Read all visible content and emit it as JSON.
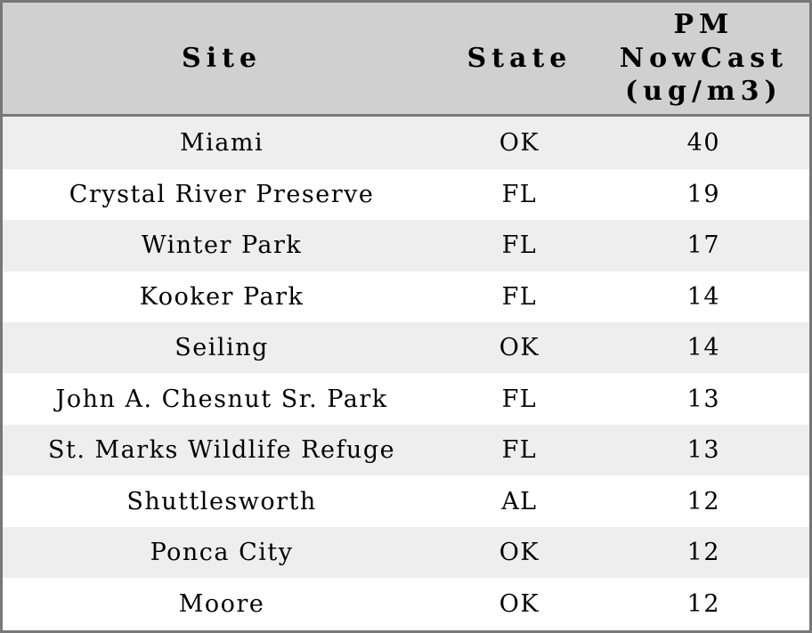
{
  "header": {
    "site_label": "Site",
    "state_label": "State",
    "pm_lines": [
      "PM",
      "NowCast",
      "(ug/m3)"
    ]
  },
  "rows": [
    {
      "site": "Miami",
      "state": "OK",
      "value": "40"
    },
    {
      "site": "Crystal River Preserve",
      "state": "FL",
      "value": "19"
    },
    {
      "site": "Winter Park",
      "state": "FL",
      "value": "17"
    },
    {
      "site": "Kooker Park",
      "state": "FL",
      "value": "14"
    },
    {
      "site": "Seiling",
      "state": "OK",
      "value": "14"
    },
    {
      "site": "John A. Chesnut Sr. Park",
      "state": "FL",
      "value": "13"
    },
    {
      "site": "St. Marks Wildlife Refuge",
      "state": "FL",
      "value": "13"
    },
    {
      "site": "Shuttlesworth",
      "state": "AL",
      "value": "12"
    },
    {
      "site": "Ponca City",
      "state": "OK",
      "value": "12"
    },
    {
      "site": "Moore",
      "state": "OK",
      "value": "12"
    }
  ],
  "colors": {
    "header_bg": "#d0d0d0",
    "border": "#787878",
    "row_stripe": "#eeeeee",
    "row_plain": "#ffffff",
    "text": "#000000"
  },
  "chart_data": {
    "type": "table",
    "title": "",
    "columns": [
      "Site",
      "State",
      "PM NowCast (ug/m3)"
    ],
    "rows": [
      [
        "Miami",
        "OK",
        40
      ],
      [
        "Crystal River Preserve",
        "FL",
        19
      ],
      [
        "Winter Park",
        "FL",
        17
      ],
      [
        "Kooker Park",
        "FL",
        14
      ],
      [
        "Seiling",
        "OK",
        14
      ],
      [
        "John A. Chesnut Sr. Park",
        "FL",
        13
      ],
      [
        "St. Marks Wildlife Refuge",
        "FL",
        13
      ],
      [
        "Shuttlesworth",
        "AL",
        12
      ],
      [
        "Ponca City",
        "OK",
        12
      ],
      [
        "Moore",
        "OK",
        12
      ]
    ]
  }
}
